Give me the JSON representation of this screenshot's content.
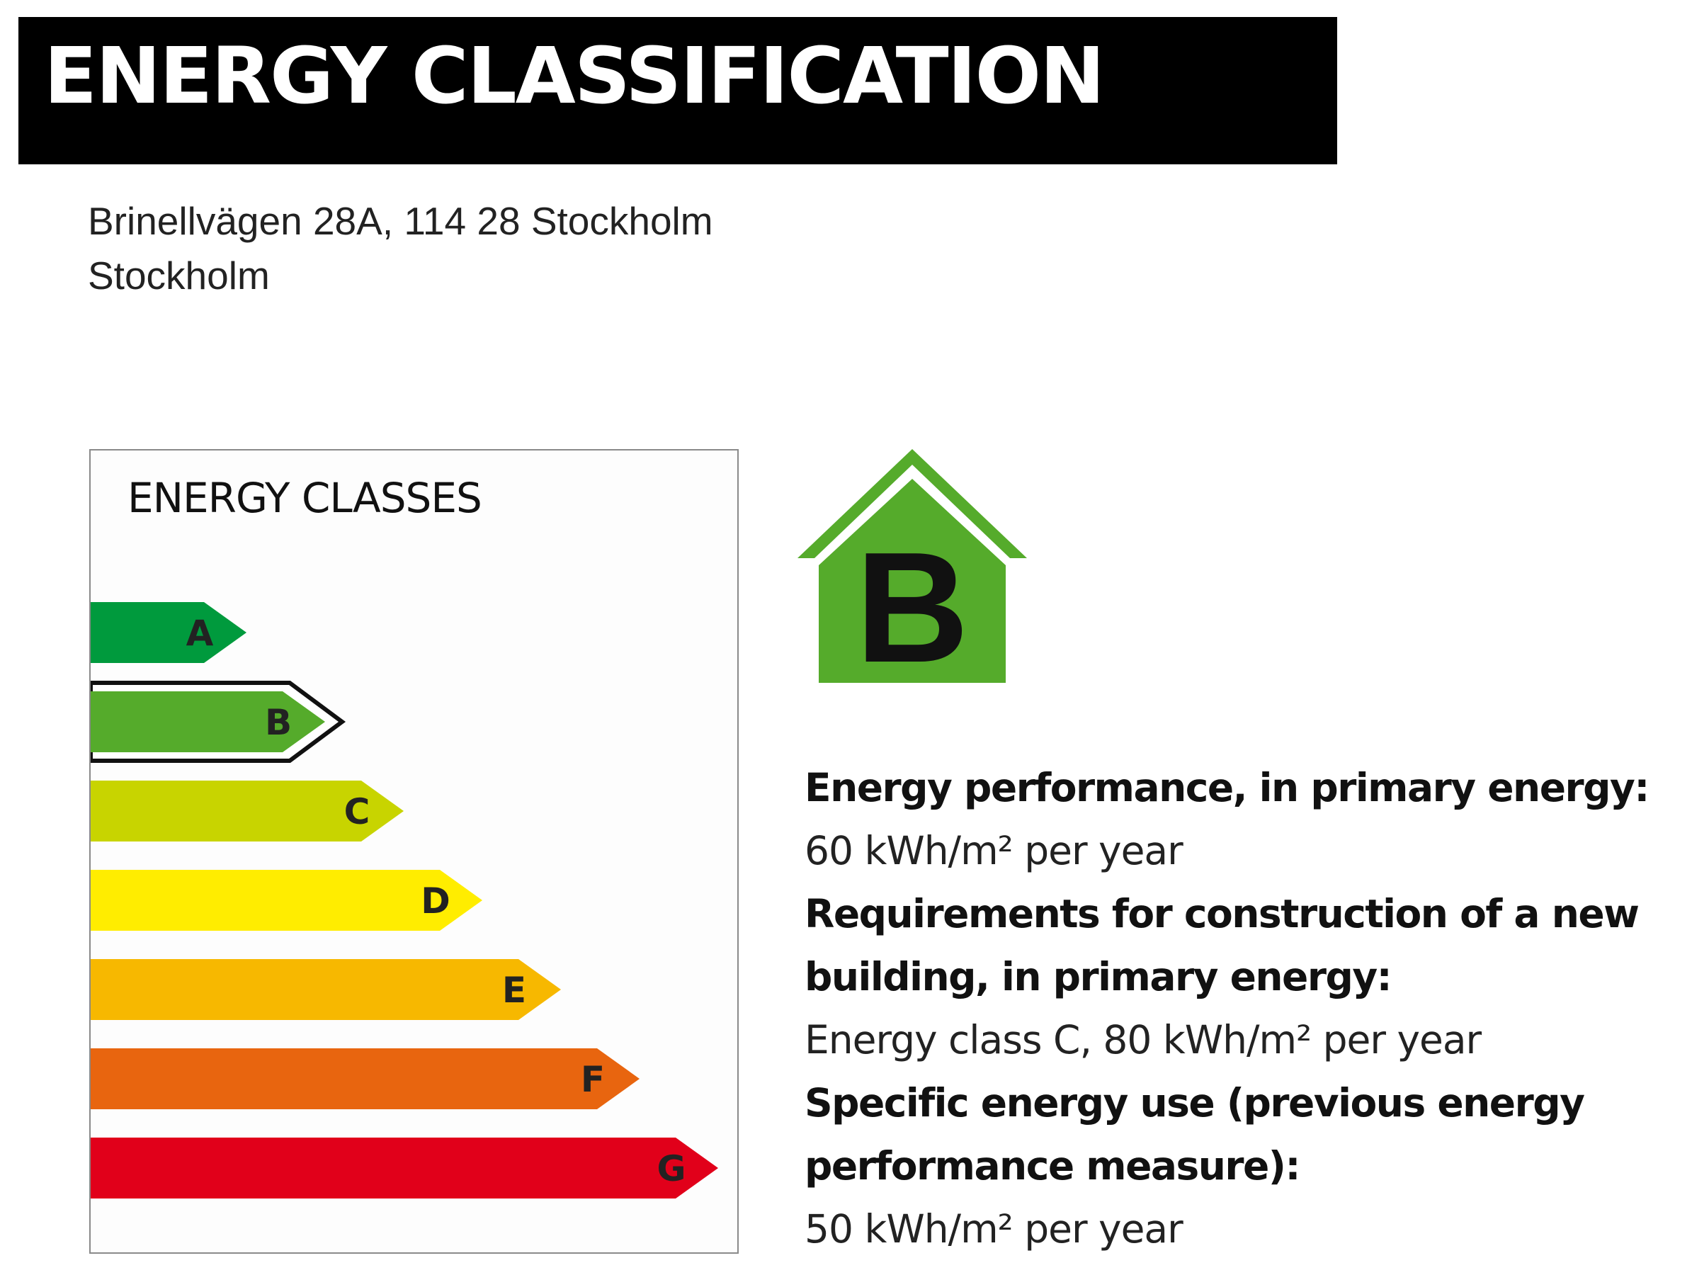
{
  "header": {
    "title": "ENERGY CLASSIFICATION"
  },
  "address": {
    "line1": "Brinellvägen 28A, 114 28 Stockholm",
    "line2": "Stockholm"
  },
  "energy_scale": {
    "title": "ENERGY CLASSES",
    "selected": "B",
    "classes": [
      {
        "label": "A",
        "color": "#009a3d"
      },
      {
        "label": "B",
        "color": "#55ab2b"
      },
      {
        "label": "C",
        "color": "#c8d400"
      },
      {
        "label": "D",
        "color": "#ffed00"
      },
      {
        "label": "E",
        "color": "#f7b800"
      },
      {
        "label": "F",
        "color": "#e8650f"
      },
      {
        "label": "G",
        "color": "#e1001a"
      }
    ]
  },
  "rating_badge": {
    "letter": "B",
    "color": "#55ab2b"
  },
  "info": {
    "performance_heading": "Energy performance, in primary energy:",
    "performance_value": "60 kWh/m² per year",
    "requirements_heading_1": "Requirements for construction of a new",
    "requirements_heading_2": "building, in primary energy:",
    "requirements_value": "Energy class C, 80 kWh/m² per year",
    "specific_heading_1": "Specific energy use (previous energy",
    "specific_heading_2": "performance measure):",
    "specific_value": "50 kWh/m² per year"
  }
}
